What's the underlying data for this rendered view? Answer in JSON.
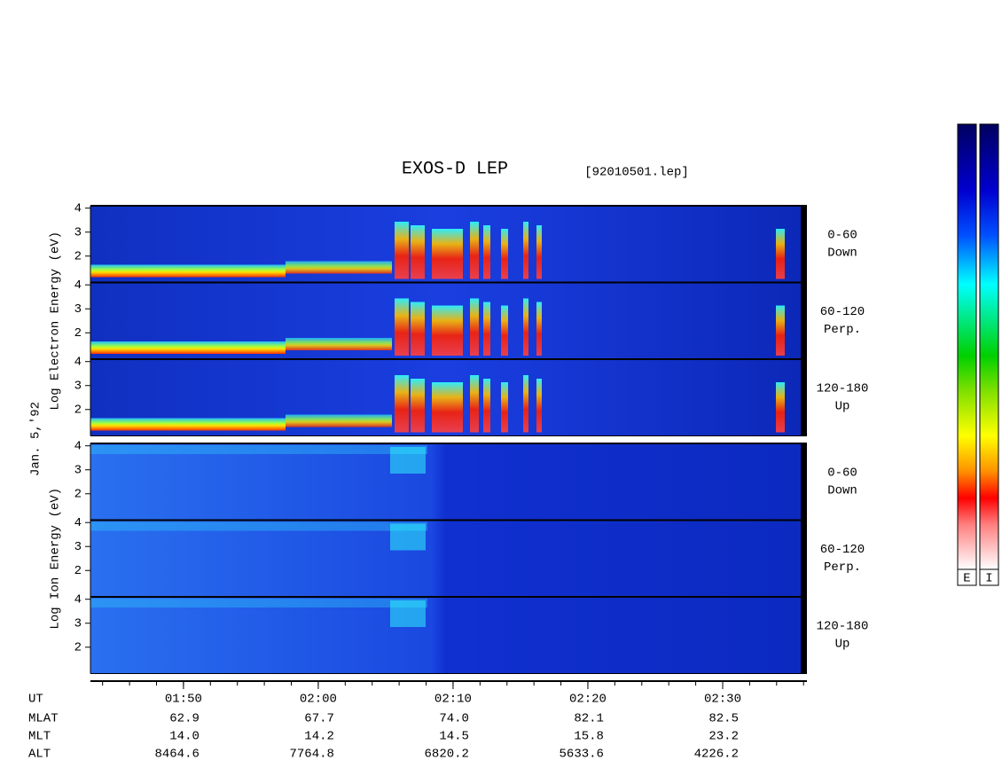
{
  "chart_data": {
    "type": "spectrogram",
    "title": "EXOS-D LEP",
    "file": "[92010501.lep]",
    "date": "Jan. 5,'92",
    "groups": [
      {
        "ylabel": "Log Electron Energy (eV)",
        "species": "electron",
        "panels": [
          {
            "label": "0-60",
            "sublabel": "Down"
          },
          {
            "label": "60-120",
            "sublabel": "Perp."
          },
          {
            "label": "120-180",
            "sublabel": "Up"
          }
        ]
      },
      {
        "ylabel": "Log Ion Energy (eV)",
        "species": "ion",
        "panels": [
          {
            "label": "0-60",
            "sublabel": "Down"
          },
          {
            "label": "60-120",
            "sublabel": "Perp."
          },
          {
            "label": "120-180",
            "sublabel": "Up"
          }
        ]
      }
    ],
    "ylim": [
      0.9,
      4.1
    ],
    "yticks": [
      2,
      3,
      4
    ],
    "xlim": [
      103.1,
      156.25
    ],
    "xticks": [
      {
        "value": 110,
        "label": "01:50"
      },
      {
        "value": 120,
        "label": "02:00"
      },
      {
        "value": 130,
        "label": "02:10"
      },
      {
        "value": 140,
        "label": "02:20"
      },
      {
        "value": 150,
        "label": "02:30"
      }
    ],
    "minor_xtick_step": 2,
    "x_row_label": "UT",
    "rows": [
      {
        "name": "MLAT",
        "values": [
          "62.9",
          "67.7",
          "74.0",
          "82.1",
          "82.5"
        ]
      },
      {
        "name": "MLT",
        "values": [
          "14.0",
          "14.2",
          "14.5",
          "15.8",
          "23.2"
        ]
      },
      {
        "name": "ALT",
        "values": [
          "8464.6",
          "7764.8",
          "6820.2",
          "5633.6",
          "4226.2"
        ]
      }
    ],
    "colorbars": [
      {
        "label": "E"
      },
      {
        "label": "I"
      }
    ]
  }
}
